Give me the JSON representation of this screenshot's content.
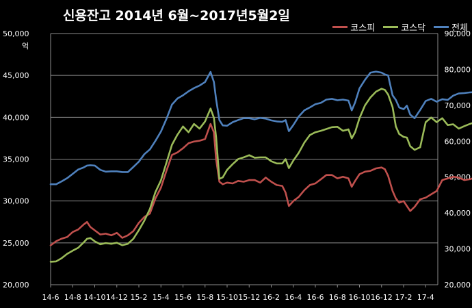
{
  "chart_data": {
    "type": "line",
    "title": "신용잔고 2014년 6월~2017년5월2일",
    "y_left_unit": "억",
    "y_left_lim": [
      20000,
      50000
    ],
    "y_left_ticks": [
      "20,000",
      "25,000",
      "30,000",
      "35,000",
      "40,000",
      "45,000",
      "50,000"
    ],
    "y_right_lim": [
      20000,
      90000
    ],
    "y_right_ticks": [
      "20,000",
      "30,000",
      "40,000",
      "50,000",
      "60,000",
      "70,000",
      "80,000",
      "90,000"
    ],
    "x_ticks": [
      "14-6",
      "14-8",
      "14-10",
      "14-12",
      "15-2",
      "15-4",
      "15-6",
      "15-8",
      "15-10",
      "15-12",
      "16-2",
      "16-4",
      "16-6",
      "16-8",
      "16-10",
      "16-12",
      "17-2",
      "17-4"
    ],
    "x_range_months": [
      0,
      35.1
    ],
    "grid": true,
    "legend_position": "top-right",
    "series": [
      {
        "name": "코스피",
        "axis": "left",
        "color": "#c0504d",
        "points": [
          [
            0,
            24700
          ],
          [
            0.5,
            25200
          ],
          [
            1,
            25500
          ],
          [
            1.5,
            25700
          ],
          [
            2,
            26300
          ],
          [
            2.5,
            26600
          ],
          [
            3,
            27200
          ],
          [
            3.3,
            27500
          ],
          [
            3.6,
            26900
          ],
          [
            4,
            26500
          ],
          [
            4.5,
            26000
          ],
          [
            5,
            26100
          ],
          [
            5.5,
            25900
          ],
          [
            6,
            26200
          ],
          [
            6.5,
            25600
          ],
          [
            7,
            25900
          ],
          [
            7.5,
            26400
          ],
          [
            8,
            27400
          ],
          [
            8.5,
            28100
          ],
          [
            9,
            28500
          ],
          [
            9.5,
            30300
          ],
          [
            10,
            31600
          ],
          [
            10.5,
            33600
          ],
          [
            11,
            35500
          ],
          [
            11.5,
            35800
          ],
          [
            12,
            36300
          ],
          [
            12.5,
            36900
          ],
          [
            13,
            37100
          ],
          [
            13.5,
            37200
          ],
          [
            14,
            37400
          ],
          [
            14.5,
            39200
          ],
          [
            14.8,
            38200
          ],
          [
            15,
            35000
          ],
          [
            15.3,
            32300
          ],
          [
            15.6,
            32000
          ],
          [
            16,
            32200
          ],
          [
            16.5,
            32100
          ],
          [
            17,
            32400
          ],
          [
            17.5,
            32300
          ],
          [
            18,
            32500
          ],
          [
            18.5,
            32500
          ],
          [
            19,
            32200
          ],
          [
            19.5,
            32800
          ],
          [
            20,
            32300
          ],
          [
            20.5,
            31900
          ],
          [
            21,
            31800
          ],
          [
            21.3,
            31000
          ],
          [
            21.6,
            29400
          ],
          [
            22,
            30000
          ],
          [
            22.5,
            30500
          ],
          [
            23,
            31300
          ],
          [
            23.5,
            31900
          ],
          [
            24,
            32100
          ],
          [
            24.5,
            32600
          ],
          [
            25,
            33100
          ],
          [
            25.5,
            33100
          ],
          [
            26,
            32700
          ],
          [
            26.5,
            32900
          ],
          [
            27,
            32700
          ],
          [
            27.3,
            31700
          ],
          [
            27.6,
            32400
          ],
          [
            28,
            33200
          ],
          [
            28.5,
            33500
          ],
          [
            29,
            33600
          ],
          [
            29.5,
            33900
          ],
          [
            30,
            34000
          ],
          [
            30.3,
            33800
          ],
          [
            30.6,
            33000
          ],
          [
            31,
            31200
          ],
          [
            31.3,
            30300
          ],
          [
            31.6,
            29800
          ],
          [
            32,
            30000
          ],
          [
            32.3,
            29400
          ],
          [
            32.6,
            28800
          ],
          [
            33,
            29300
          ],
          [
            33.5,
            30200
          ],
          [
            34,
            30400
          ],
          [
            34.5,
            30800
          ],
          [
            35,
            31200
          ],
          [
            35.5,
            32500
          ],
          [
            36,
            32700
          ],
          [
            36.5,
            32900
          ],
          [
            37,
            32800
          ],
          [
            37.5,
            32500
          ],
          [
            38,
            32600
          ],
          [
            38.5,
            32800
          ]
        ]
      },
      {
        "name": "코스닥",
        "axis": "right",
        "color": "#9bbb59",
        "points": [
          [
            0,
            26400
          ],
          [
            0.5,
            26500
          ],
          [
            1,
            27400
          ],
          [
            1.5,
            28600
          ],
          [
            2,
            29500
          ],
          [
            2.5,
            30300
          ],
          [
            3,
            31800
          ],
          [
            3.3,
            32800
          ],
          [
            3.6,
            33000
          ],
          [
            4,
            32100
          ],
          [
            4.5,
            31300
          ],
          [
            5,
            31600
          ],
          [
            5.5,
            31400
          ],
          [
            6,
            31700
          ],
          [
            6.5,
            31000
          ],
          [
            7,
            31400
          ],
          [
            7.5,
            32800
          ],
          [
            8,
            35200
          ],
          [
            8.5,
            37900
          ],
          [
            9,
            41100
          ],
          [
            9.5,
            45800
          ],
          [
            10,
            49100
          ],
          [
            10.5,
            54000
          ],
          [
            11,
            59000
          ],
          [
            11.5,
            61800
          ],
          [
            12,
            64100
          ],
          [
            12.5,
            62500
          ],
          [
            13,
            64800
          ],
          [
            13.5,
            63500
          ],
          [
            14,
            65500
          ],
          [
            14.5,
            69100
          ],
          [
            14.8,
            66500
          ],
          [
            15,
            61200
          ],
          [
            15.3,
            49500
          ],
          [
            15.6,
            49900
          ],
          [
            16,
            52000
          ],
          [
            16.5,
            53600
          ],
          [
            17,
            55000
          ],
          [
            17.5,
            55500
          ],
          [
            18,
            56100
          ],
          [
            18.5,
            55400
          ],
          [
            19,
            55500
          ],
          [
            19.5,
            55500
          ],
          [
            20,
            54400
          ],
          [
            20.5,
            53800
          ],
          [
            21,
            53800
          ],
          [
            21.3,
            55000
          ],
          [
            21.6,
            52500
          ],
          [
            22,
            54600
          ],
          [
            22.5,
            56800
          ],
          [
            23,
            59600
          ],
          [
            23.5,
            61700
          ],
          [
            24,
            62500
          ],
          [
            24.5,
            62900
          ],
          [
            25,
            63400
          ],
          [
            25.5,
            63900
          ],
          [
            26,
            64000
          ],
          [
            26.5,
            62900
          ],
          [
            27,
            63300
          ],
          [
            27.3,
            60800
          ],
          [
            27.6,
            62500
          ],
          [
            28,
            66400
          ],
          [
            28.5,
            70000
          ],
          [
            29,
            72200
          ],
          [
            29.5,
            73800
          ],
          [
            30,
            74600
          ],
          [
            30.3,
            74300
          ],
          [
            30.6,
            73000
          ],
          [
            31,
            69500
          ],
          [
            31.3,
            64100
          ],
          [
            31.6,
            62000
          ],
          [
            32,
            61200
          ],
          [
            32.3,
            61000
          ],
          [
            32.6,
            58600
          ],
          [
            33,
            57600
          ],
          [
            33.5,
            58300
          ],
          [
            34,
            65300
          ],
          [
            34.5,
            66600
          ],
          [
            35,
            65300
          ],
          [
            35.5,
            66400
          ],
          [
            36,
            64500
          ],
          [
            36.5,
            64700
          ],
          [
            37,
            63500
          ],
          [
            37.5,
            64200
          ],
          [
            38,
            64800
          ],
          [
            38.5,
            65300
          ]
        ]
      },
      {
        "name": "전체",
        "axis": "right",
        "color": "#4f81bd",
        "points": [
          [
            0,
            48000
          ],
          [
            0.5,
            48000
          ],
          [
            1,
            48800
          ],
          [
            1.5,
            49700
          ],
          [
            2,
            50900
          ],
          [
            2.5,
            52100
          ],
          [
            3,
            52700
          ],
          [
            3.3,
            53200
          ],
          [
            3.6,
            53300
          ],
          [
            4,
            53200
          ],
          [
            4.5,
            52000
          ],
          [
            5,
            51500
          ],
          [
            5.5,
            51600
          ],
          [
            6,
            51600
          ],
          [
            6.5,
            51400
          ],
          [
            7,
            51400
          ],
          [
            7.5,
            52800
          ],
          [
            8,
            54300
          ],
          [
            8.5,
            56400
          ],
          [
            9,
            57700
          ],
          [
            9.5,
            60100
          ],
          [
            10,
            62700
          ],
          [
            10.5,
            66200
          ],
          [
            11,
            70200
          ],
          [
            11.5,
            71900
          ],
          [
            12,
            72800
          ],
          [
            12.5,
            73900
          ],
          [
            13,
            74800
          ],
          [
            13.5,
            75500
          ],
          [
            14,
            76500
          ],
          [
            14.5,
            79300
          ],
          [
            14.8,
            76500
          ],
          [
            15,
            71700
          ],
          [
            15.3,
            65900
          ],
          [
            15.6,
            64400
          ],
          [
            16,
            64300
          ],
          [
            16.5,
            65300
          ],
          [
            17,
            65900
          ],
          [
            17.5,
            66400
          ],
          [
            18,
            66400
          ],
          [
            18.5,
            66100
          ],
          [
            19,
            66500
          ],
          [
            19.5,
            66300
          ],
          [
            20,
            65800
          ],
          [
            20.5,
            65500
          ],
          [
            21,
            65400
          ],
          [
            21.3,
            65900
          ],
          [
            21.6,
            62800
          ],
          [
            22,
            64500
          ],
          [
            22.5,
            66900
          ],
          [
            23,
            68600
          ],
          [
            23.5,
            69400
          ],
          [
            24,
            70300
          ],
          [
            24.5,
            70700
          ],
          [
            25,
            71600
          ],
          [
            25.5,
            71800
          ],
          [
            26,
            71400
          ],
          [
            26.5,
            71600
          ],
          [
            27,
            71300
          ],
          [
            27.3,
            68600
          ],
          [
            27.6,
            70800
          ],
          [
            28,
            74700
          ],
          [
            28.5,
            77100
          ],
          [
            29,
            79100
          ],
          [
            29.5,
            79400
          ],
          [
            30,
            79100
          ],
          [
            30.3,
            78600
          ],
          [
            30.6,
            78300
          ],
          [
            31,
            72800
          ],
          [
            31.3,
            71500
          ],
          [
            31.6,
            69400
          ],
          [
            32,
            68900
          ],
          [
            32.3,
            69900
          ],
          [
            32.6,
            67400
          ],
          [
            33,
            66400
          ],
          [
            33.5,
            68700
          ],
          [
            34,
            71200
          ],
          [
            34.5,
            71800
          ],
          [
            35,
            71000
          ],
          [
            35.5,
            71700
          ],
          [
            36,
            71500
          ],
          [
            36.5,
            72700
          ],
          [
            37,
            73300
          ],
          [
            37.5,
            73400
          ],
          [
            38,
            73600
          ],
          [
            38.5,
            73700
          ]
        ]
      }
    ]
  }
}
